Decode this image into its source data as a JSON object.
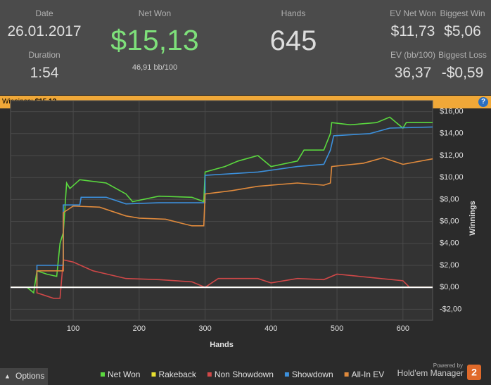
{
  "header": {
    "date_label": "Date",
    "date": "26.01.2017",
    "duration_label": "Duration",
    "duration": "1:54",
    "net_won_label": "Net Won",
    "net_won": "$15,13",
    "bb100": "46,91 bb/100",
    "hands_label": "Hands",
    "hands": "645",
    "ev_net_won_label": "EV Net Won",
    "ev_net_won": "$11,73",
    "biggest_win_label": "Biggest Win",
    "biggest_win": "$5,06",
    "ev_bb100_label": "EV (bb/100)",
    "ev_bb100": "36,37",
    "biggest_loss_label": "Biggest Loss",
    "biggest_loss": "-$0,59"
  },
  "bar": {
    "label": "Winnings:",
    "value": "$15,13",
    "help": "?"
  },
  "footer": {
    "options": "Options",
    "powered_by": "Powered by",
    "brand": "Hold'em Manager",
    "brand_badge": "2"
  },
  "chart_data": {
    "type": "line",
    "x_label": "Hands",
    "y_label": "Winnings",
    "xlim": [
      5,
      645
    ],
    "ylim": [
      -3,
      17
    ],
    "xticks": [
      100,
      200,
      300,
      400,
      500,
      600
    ],
    "yticks": [
      {
        "value": -2,
        "label": "-$2,00"
      },
      {
        "value": 0,
        "label": "$0,00"
      },
      {
        "value": 2,
        "label": "$2,00"
      },
      {
        "value": 4,
        "label": "$4,00"
      },
      {
        "value": 6,
        "label": "$6,00"
      },
      {
        "value": 8,
        "label": "$8,00"
      },
      {
        "value": 10,
        "label": "$10,00"
      },
      {
        "value": 12,
        "label": "$12,00"
      },
      {
        "value": 14,
        "label": "$14,00"
      },
      {
        "value": 16,
        "label": "$16,00"
      }
    ],
    "grid": true,
    "series": [
      {
        "name": "Net Won",
        "color": "#5ad83e",
        "x": [
          5,
          30,
          40,
          45,
          60,
          75,
          80,
          85,
          90,
          95,
          110,
          150,
          180,
          190,
          230,
          280,
          298,
          300,
          330,
          350,
          380,
          400,
          440,
          450,
          480,
          490,
          492,
          520,
          560,
          580,
          590,
          600,
          605,
          645
        ],
        "values": [
          0,
          0,
          -0.5,
          1.5,
          1.2,
          1.0,
          4,
          5,
          9.5,
          9,
          9.8,
          9.5,
          8.5,
          7.8,
          8.3,
          8.2,
          7.8,
          10.5,
          11,
          11.5,
          12,
          11,
          11.5,
          12.5,
          12.5,
          14,
          15,
          14.8,
          15,
          15.5,
          15,
          14.5,
          15,
          15
        ]
      },
      {
        "name": "Rakeback",
        "color": "#e8e030",
        "x": [
          5,
          645
        ],
        "values": [
          0,
          0
        ]
      },
      {
        "name": "Non Showdown",
        "color": "#d04848",
        "x": [
          5,
          45,
          45,
          70,
          80,
          85,
          100,
          130,
          180,
          230,
          280,
          300,
          320,
          380,
          400,
          440,
          480,
          500,
          550,
          600,
          610,
          645
        ],
        "values": [
          0,
          0,
          -0.5,
          -1,
          -1,
          2.5,
          2.3,
          1.5,
          0.8,
          0.7,
          0.5,
          0,
          0.8,
          0.8,
          0.4,
          0.8,
          0.7,
          1.2,
          0.9,
          0.6,
          0,
          0
        ]
      },
      {
        "name": "Showdown",
        "color": "#3c90dc",
        "x": [
          5,
          45,
          45,
          85,
          85,
          110,
          112,
          150,
          180,
          230,
          300,
          300,
          380,
          440,
          480,
          490,
          495,
          550,
          580,
          645
        ],
        "values": [
          0,
          0,
          2,
          2,
          7.5,
          7.5,
          8.2,
          8.2,
          7.6,
          7.7,
          7.7,
          10.2,
          10.5,
          11,
          11.2,
          12.5,
          13.8,
          14,
          14.5,
          14.6
        ]
      },
      {
        "name": "All-In EV",
        "color": "#e08a3c",
        "x": [
          5,
          45,
          45,
          85,
          85,
          100,
          140,
          180,
          200,
          240,
          280,
          298,
          300,
          340,
          380,
          440,
          480,
          490,
          492,
          540,
          570,
          600,
          645
        ],
        "values": [
          0,
          0,
          1.5,
          1.5,
          6.8,
          7.4,
          7.3,
          6.5,
          6.3,
          6.2,
          5.6,
          5.6,
          8.5,
          8.8,
          9.2,
          9.5,
          9.3,
          9.5,
          11,
          11.3,
          11.8,
          11.2,
          11.7
        ]
      }
    ]
  }
}
